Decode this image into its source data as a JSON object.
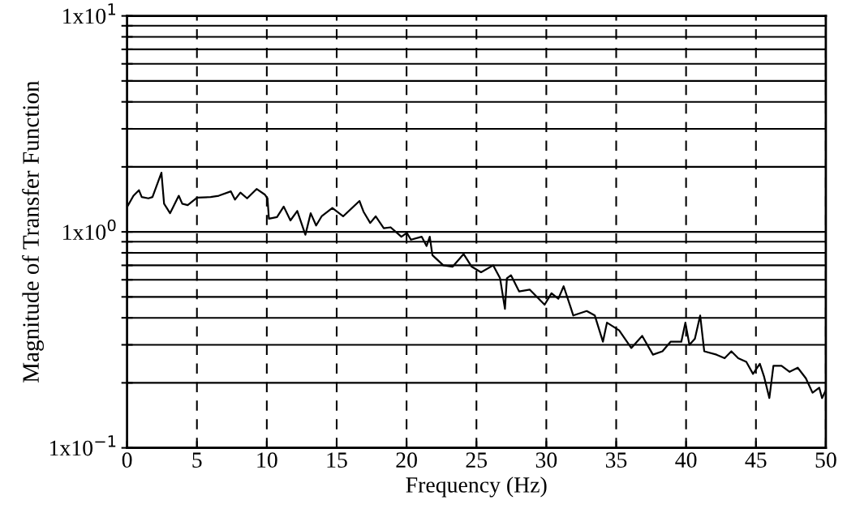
{
  "chart_data": {
    "type": "line",
    "xlabel": "Frequency (Hz)",
    "ylabel": "Magnitude of Transfer Function",
    "log": "y",
    "grid": true,
    "line_style": "solid",
    "marker": "none",
    "xlim": [
      0,
      50
    ],
    "xticks": [
      0,
      5,
      10,
      15,
      20,
      25,
      30,
      35,
      40,
      45,
      50
    ],
    "ylim": [
      0.1,
      10
    ],
    "yticks": [
      {
        "value": 0.1,
        "label": "1x10$^{−1}$"
      },
      {
        "value": 0.2,
        "label": null
      },
      {
        "value": 0.3,
        "label": null
      },
      {
        "value": 0.4,
        "label": null
      },
      {
        "value": 0.5,
        "label": null
      },
      {
        "value": 0.6,
        "label": null
      },
      {
        "value": 0.7,
        "label": null
      },
      {
        "value": 0.8,
        "label": null
      },
      {
        "value": 0.9,
        "label": null
      },
      {
        "value": 1,
        "label": "1x10$^{0}$"
      },
      {
        "value": 2,
        "label": null
      },
      {
        "value": 3,
        "label": null
      },
      {
        "value": 4,
        "label": null
      },
      {
        "value": 5,
        "label": null
      },
      {
        "value": 6,
        "label": null
      },
      {
        "value": 7,
        "label": null
      },
      {
        "value": 8,
        "label": null
      },
      {
        "value": 9,
        "label": null
      },
      {
        "value": 10,
        "label": "1x10$^{1}$"
      }
    ],
    "series": [
      {
        "color": "#000000",
        "x": [
          0,
          0.02,
          0.46,
          0.85,
          1.05,
          1.53,
          1.82,
          2.46,
          2.65,
          3.08,
          3.37,
          3.7,
          3.95,
          4.34,
          5.01,
          5.98,
          6.56,
          7.43,
          7.72,
          8.11,
          8.59,
          9.27,
          9.85,
          10.05,
          10.15,
          10.73,
          11.21,
          11.69,
          12.18,
          12.76,
          13.14,
          13.53,
          13.92,
          14.69,
          15.46,
          16.63,
          16.92,
          17.4,
          17.79,
          18.37,
          18.86,
          19.63,
          20.02,
          20.31,
          21.08,
          21.43,
          21.66,
          21.85,
          22.63,
          23.3,
          24.08,
          24.66,
          25.33,
          26.2,
          26.69,
          27.04,
          27.18,
          27.47,
          28.05,
          28.82,
          29.88,
          30.37,
          30.86,
          31.24,
          31.73,
          31.93,
          32.89,
          33.47,
          34.05,
          34.34,
          35.21,
          36.08,
          36.86,
          37.63,
          38.31,
          38.89,
          39.66,
          39.95,
          40.24,
          40.63,
          41.01,
          41.3,
          42.18,
          42.76,
          43.24,
          43.73,
          44.31,
          44.79,
          45.28,
          45.57,
          45.96,
          46.25,
          46.83,
          47.41,
          47.99,
          48.57,
          49.05,
          49.53,
          49.73,
          50
        ],
        "values": [
          1.04,
          1.31,
          1.47,
          1.56,
          1.45,
          1.43,
          1.45,
          1.88,
          1.35,
          1.22,
          1.33,
          1.47,
          1.35,
          1.33,
          1.44,
          1.45,
          1.47,
          1.54,
          1.41,
          1.52,
          1.43,
          1.58,
          1.49,
          1.43,
          1.15,
          1.17,
          1.31,
          1.13,
          1.25,
          0.97,
          1.22,
          1.07,
          1.18,
          1.29,
          1.18,
          1.39,
          1.24,
          1.1,
          1.18,
          1.04,
          1.05,
          0.95,
          0.99,
          0.92,
          0.95,
          0.86,
          0.95,
          0.78,
          0.7,
          0.69,
          0.79,
          0.69,
          0.65,
          0.7,
          0.61,
          0.44,
          0.61,
          0.63,
          0.53,
          0.54,
          0.46,
          0.52,
          0.49,
          0.56,
          0.45,
          0.41,
          0.43,
          0.41,
          0.31,
          0.38,
          0.35,
          0.29,
          0.33,
          0.27,
          0.28,
          0.31,
          0.31,
          0.38,
          0.3,
          0.32,
          0.41,
          0.28,
          0.27,
          0.26,
          0.28,
          0.26,
          0.25,
          0.22,
          0.245,
          0.215,
          0.17,
          0.24,
          0.24,
          0.225,
          0.235,
          0.21,
          0.18,
          0.19,
          0.17,
          0.185
        ]
      }
    ]
  }
}
